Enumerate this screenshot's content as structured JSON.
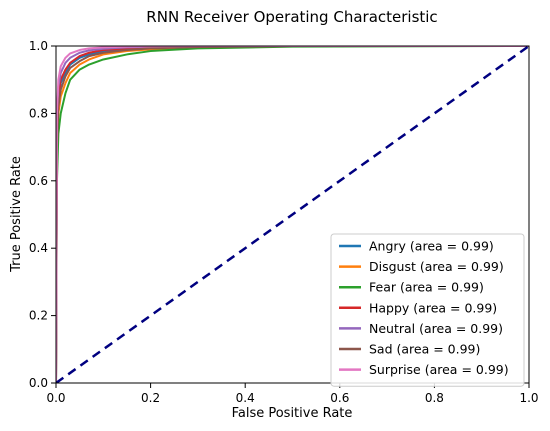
{
  "chart_data": {
    "type": "line",
    "title": "RNN Receiver Operating Characteristic",
    "xlabel": "False Positive Rate",
    "ylabel": "True Positive Rate",
    "xlim": [
      0.0,
      1.0
    ],
    "ylim": [
      0.0,
      1.0
    ],
    "xticks": [
      "0.0",
      "0.2",
      "0.4",
      "0.6",
      "0.8",
      "1.0"
    ],
    "yticks": [
      "0.0",
      "0.2",
      "0.4",
      "0.6",
      "0.8",
      "1.0"
    ],
    "grid": false,
    "legend_position": "lower-right",
    "series": [
      {
        "name": "Angry (area = 0.99)",
        "color": "#1f77b4",
        "x": [
          0,
          0.002,
          0.005,
          0.01,
          0.02,
          0.03,
          0.05,
          0.07,
          0.1,
          0.15,
          0.2,
          0.3,
          0.5,
          1.0
        ],
        "y": [
          0,
          0.72,
          0.84,
          0.89,
          0.92,
          0.945,
          0.965,
          0.975,
          0.985,
          0.99,
          0.995,
          0.998,
          1.0,
          1.0
        ]
      },
      {
        "name": "Disgust (area = 0.99)",
        "color": "#ff7f0e",
        "x": [
          0,
          0.002,
          0.005,
          0.01,
          0.02,
          0.03,
          0.05,
          0.07,
          0.1,
          0.15,
          0.2,
          0.3,
          0.5,
          1.0
        ],
        "y": [
          0,
          0.68,
          0.8,
          0.85,
          0.89,
          0.92,
          0.945,
          0.96,
          0.975,
          0.985,
          0.99,
          0.996,
          1.0,
          1.0
        ]
      },
      {
        "name": "Fear (area = 0.99)",
        "color": "#2ca02c",
        "x": [
          0,
          0.002,
          0.005,
          0.01,
          0.02,
          0.03,
          0.05,
          0.07,
          0.1,
          0.15,
          0.2,
          0.3,
          0.5,
          1.0
        ],
        "y": [
          0,
          0.6,
          0.74,
          0.8,
          0.86,
          0.9,
          0.93,
          0.945,
          0.96,
          0.975,
          0.985,
          0.993,
          0.998,
          1.0
        ]
      },
      {
        "name": "Happy (area = 0.99)",
        "color": "#d62728",
        "x": [
          0,
          0.002,
          0.005,
          0.01,
          0.02,
          0.03,
          0.05,
          0.07,
          0.1,
          0.15,
          0.2,
          0.3,
          0.5,
          1.0
        ],
        "y": [
          0,
          0.74,
          0.85,
          0.9,
          0.93,
          0.95,
          0.97,
          0.98,
          0.988,
          0.993,
          0.996,
          0.999,
          1.0,
          1.0
        ]
      },
      {
        "name": "Neutral (area = 0.99)",
        "color": "#9467bd",
        "x": [
          0,
          0.002,
          0.005,
          0.01,
          0.02,
          0.03,
          0.05,
          0.07,
          0.1,
          0.15,
          0.2,
          0.3,
          0.5,
          1.0
        ],
        "y": [
          0,
          0.78,
          0.88,
          0.92,
          0.95,
          0.965,
          0.98,
          0.987,
          0.992,
          0.996,
          0.998,
          1.0,
          1.0,
          1.0
        ]
      },
      {
        "name": "Sad (area = 0.99)",
        "color": "#8c564b",
        "x": [
          0,
          0.002,
          0.005,
          0.01,
          0.02,
          0.03,
          0.05,
          0.07,
          0.1,
          0.15,
          0.2,
          0.3,
          0.5,
          1.0
        ],
        "y": [
          0,
          0.7,
          0.82,
          0.87,
          0.91,
          0.935,
          0.955,
          0.97,
          0.98,
          0.988,
          0.993,
          0.997,
          1.0,
          1.0
        ]
      },
      {
        "name": "Surprise (area = 0.99)",
        "color": "#e377c2",
        "x": [
          0,
          0.002,
          0.005,
          0.01,
          0.02,
          0.03,
          0.05,
          0.07,
          0.1,
          0.15,
          0.2,
          0.3,
          0.5,
          1.0
        ],
        "y": [
          0,
          0.8,
          0.9,
          0.94,
          0.965,
          0.978,
          0.988,
          0.993,
          0.996,
          0.998,
          0.999,
          1.0,
          1.0,
          1.0
        ]
      }
    ],
    "reference_line": {
      "style": "dashed",
      "color": "#000080",
      "x": [
        0,
        1
      ],
      "y": [
        0,
        1
      ]
    }
  }
}
